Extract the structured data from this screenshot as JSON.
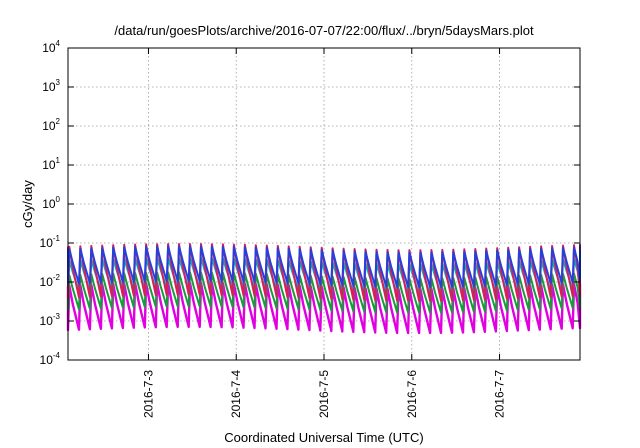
{
  "chart_data": {
    "type": "line",
    "title": "/data/run/goesPlots/archive/2016-07-07/22:00/flux/../bryn/5daysMars.plot",
    "xlabel": "Coordinated Universal Time (UTC)",
    "ylabel": "cGy/day",
    "y_scale": "log",
    "ylim": [
      0.0001,
      10000
    ],
    "y_ticks": [
      {
        "base": "10",
        "exp": "-4",
        "value": 0.0001
      },
      {
        "base": "10",
        "exp": "-3",
        "value": 0.001
      },
      {
        "base": "10",
        "exp": "-2",
        "value": 0.01
      },
      {
        "base": "10",
        "exp": "-1",
        "value": 0.1
      },
      {
        "base": "10",
        "exp": "0",
        "value": 1
      },
      {
        "base": "10",
        "exp": "1",
        "value": 10
      },
      {
        "base": "10",
        "exp": "2",
        "value": 100
      },
      {
        "base": "10",
        "exp": "3",
        "value": 1000
      },
      {
        "base": "10",
        "exp": "4",
        "value": 10000
      }
    ],
    "xlim": [
      "2016-07-02 02:00",
      "2016-07-07 22:00"
    ],
    "x_ticks": [
      {
        "label": "2016-7-3",
        "date": "2016-07-03"
      },
      {
        "label": "2016-7-4",
        "date": "2016-07-04"
      },
      {
        "label": "2016-7-5",
        "date": "2016-07-05"
      },
      {
        "label": "2016-7-6",
        "date": "2016-07-06"
      },
      {
        "label": "2016-7-7",
        "date": "2016-07-07"
      }
    ],
    "grid": true,
    "legend": "none",
    "pattern": "sawtooth, period about 3 hours; each cycle rises sharply then decays",
    "series": [
      {
        "color": "#2a3fd8",
        "low": 0.009,
        "high": 0.07
      },
      {
        "color": "#d81f5a",
        "low": 0.004,
        "high": 0.08
      },
      {
        "color": "#00b4c8",
        "low": 0.006,
        "high": 0.035
      },
      {
        "color": "#1a9a3c",
        "low": 0.002,
        "high": 0.015
      },
      {
        "color": "#e000e0",
        "low": 0.0006,
        "high": 0.008
      }
    ]
  }
}
